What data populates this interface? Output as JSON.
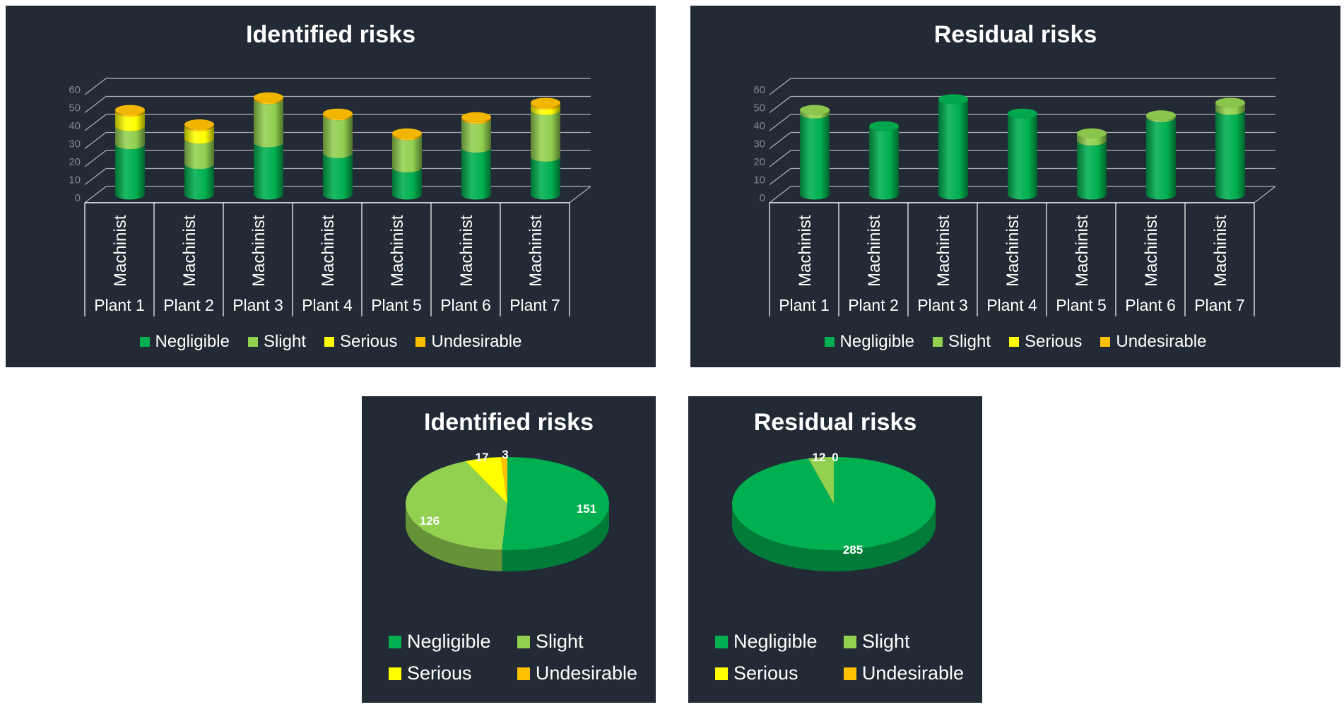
{
  "colors": {
    "Negligible": "#00b050",
    "Slight": "#92d050",
    "Serious": "#ffff00",
    "Undesirable": "#ffc000",
    "background": "#222a35"
  },
  "chart_data": [
    {
      "type": "bar",
      "title": "Identified risks",
      "categories": [
        "Plant 1",
        "Plant 2",
        "Plant 3",
        "Plant 4",
        "Plant 5",
        "Plant 6",
        "Plant 7"
      ],
      "subcategory": "Machinist",
      "series": [
        {
          "name": "Negligible",
          "values": [
            28,
            17,
            29,
            23,
            15,
            26,
            21
          ]
        },
        {
          "name": "Slight",
          "values": [
            10,
            14,
            24,
            21,
            18,
            16,
            26
          ]
        },
        {
          "name": "Serious",
          "values": [
            8,
            7,
            0,
            0,
            0,
            0,
            3
          ]
        },
        {
          "name": "Undesirable",
          "values": [
            1,
            1,
            1,
            1,
            1,
            1,
            1
          ]
        }
      ],
      "ylim": [
        0,
        60
      ],
      "yticks": [
        "0",
        "10",
        "20",
        "30",
        "40",
        "50",
        "60"
      ],
      "stacked": true,
      "grid": true,
      "legend": "bottom"
    },
    {
      "type": "bar",
      "title": "Residual risks",
      "categories": [
        "Plant 1",
        "Plant 2",
        "Plant 3",
        "Plant 4",
        "Plant 5",
        "Plant 6",
        "Plant 7"
      ],
      "subcategory": "Machinist",
      "series": [
        {
          "name": "Negligible",
          "values": [
            45,
            38,
            53,
            45,
            30,
            43,
            47
          ]
        },
        {
          "name": "Slight",
          "values": [
            2,
            0,
            0,
            0,
            4,
            1,
            4
          ]
        },
        {
          "name": "Serious",
          "values": [
            0,
            0,
            0,
            0,
            0,
            0,
            0
          ]
        },
        {
          "name": "Undesirable",
          "values": [
            0,
            0,
            0,
            0,
            0,
            0,
            0
          ]
        }
      ],
      "ylim": [
        0,
        60
      ],
      "yticks": [
        "0",
        "10",
        "20",
        "30",
        "40",
        "50",
        "60"
      ],
      "stacked": true,
      "grid": true,
      "legend": "bottom"
    },
    {
      "type": "pie",
      "title": "Identified risks",
      "labels": [
        "Negligible",
        "Slight",
        "Serious",
        "Undesirable"
      ],
      "values": [
        151,
        126,
        17,
        3
      ],
      "data_labels": [
        "151",
        "126",
        "17",
        "3"
      ],
      "legend": "bottom"
    },
    {
      "type": "pie",
      "title": "Residual risks",
      "labels": [
        "Negligible",
        "Slight",
        "Serious",
        "Undesirable"
      ],
      "values": [
        285,
        12,
        0,
        0
      ],
      "data_labels": [
        "285",
        "12",
        "0",
        ""
      ],
      "legend": "bottom"
    }
  ]
}
